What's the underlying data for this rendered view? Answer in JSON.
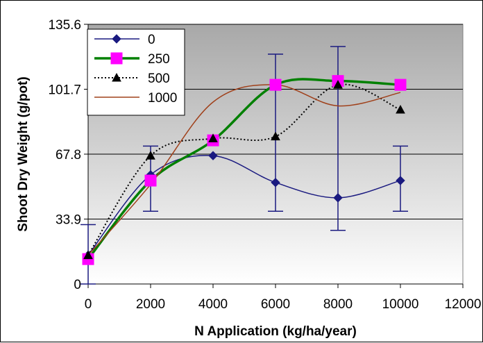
{
  "chart_data": {
    "type": "line",
    "xlabel": "N Application (kg/ha/year)",
    "ylabel": "Shoot Dry Weight (g/pot)",
    "xlim": [
      0,
      12000
    ],
    "ylim": [
      0,
      135.6
    ],
    "x_ticks": [
      "0",
      "2000",
      "4000",
      "6000",
      "8000",
      "10000",
      "12000"
    ],
    "x_tick_values": [
      0,
      2000,
      4000,
      6000,
      8000,
      10000,
      12000
    ],
    "y_ticks": [
      "0",
      "33.9",
      "67.8",
      "101.7",
      "135.6"
    ],
    "y_tick_values": [
      0,
      33.9,
      67.8,
      101.7,
      135.6
    ],
    "grid": "horizontal",
    "legend_position": "top-left",
    "colors": {
      "s0": "#1a1a80",
      "s250": "#008000",
      "s500": "#000000",
      "s1000": "#a0401a",
      "marker250": "#ff00ff"
    },
    "series": [
      {
        "name": "0",
        "x": [
          0,
          2000,
          4000,
          6000,
          8000,
          10000
        ],
        "y": [
          15,
          57,
          67,
          53,
          45,
          54
        ],
        "error": [
          31,
          0,
          0,
          0,
          0,
          0
        ],
        "marker": "diamond",
        "line": "solid",
        "color": "#1a1a80"
      },
      {
        "name": "250",
        "x": [
          0,
          2000,
          4000,
          6000,
          8000,
          10000
        ],
        "y": [
          13,
          54,
          75,
          104,
          106,
          104
        ],
        "error": [
          0,
          0,
          0,
          0,
          0,
          0
        ],
        "marker": "square",
        "line": "solid-thick",
        "color": "#008000"
      },
      {
        "name": "500",
        "x": [
          0,
          2000,
          4000,
          6000,
          8000,
          10000
        ],
        "y": [
          15,
          67,
          76,
          77,
          104,
          91
        ],
        "error": [
          0,
          0,
          0,
          0,
          0,
          0
        ],
        "marker": "triangle",
        "line": "dotted",
        "color": "#000000"
      },
      {
        "name": "1000",
        "x": [
          0,
          2000,
          4000,
          6000,
          8000,
          10000
        ],
        "y": [
          15,
          52,
          95,
          104,
          93,
          100
        ],
        "error": [
          0,
          0,
          0,
          0,
          0,
          0
        ],
        "marker": "none",
        "line": "solid-thin",
        "color": "#a0401a"
      }
    ],
    "error_bars": [
      {
        "x": 0,
        "low": 0,
        "high": 31
      },
      {
        "x": 2000,
        "low": 38,
        "high": 72
      },
      {
        "x": 6000,
        "low": 38,
        "high": 120
      },
      {
        "x": 8000,
        "low": 28,
        "high": 124
      },
      {
        "x": 10000,
        "low": 38,
        "high": 72
      }
    ]
  }
}
